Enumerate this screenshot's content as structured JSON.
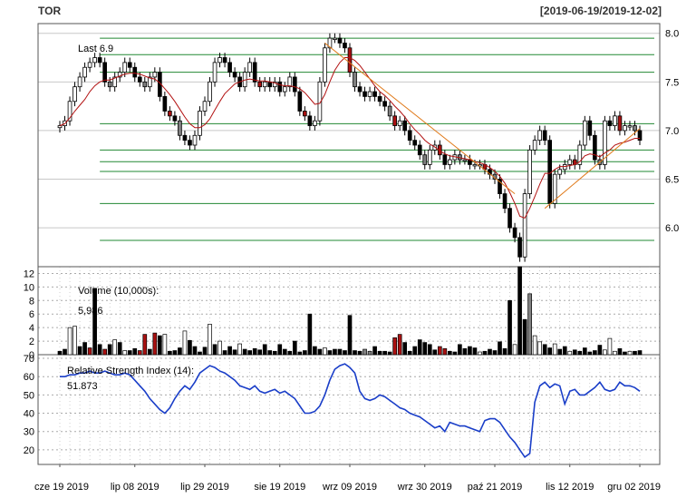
{
  "header": {
    "symbol": "TOR",
    "date_range": "[2019-06-19/2019-12-02]"
  },
  "colors": {
    "up_fill": "#ffffff",
    "down_fill": "#000000",
    "neutral_fill": "#808080",
    "volume_red": "#aa1111",
    "ma_line": "#b21111",
    "trend_line": "#e07a1a",
    "level_line": "#228833",
    "rsi_line": "#1a3ec8"
  },
  "chart_data": [
    {
      "type": "candlestick",
      "name": "price",
      "annotation": "Last 6.9",
      "ylim": [
        5.6,
        8.1
      ],
      "yticks": [
        "6.0",
        "6.5",
        "7.0",
        "7.5",
        "8.0"
      ],
      "x_labels": [
        "cze 19 2019",
        "lip 08 2019",
        "lip 29 2019",
        "sie 19 2019",
        "wrz 09 2019",
        "wrz 30 2019",
        "paź 21 2019",
        "lis 12 2019",
        "gru 02 2019"
      ],
      "close_series": [
        7.05,
        7.1,
        7.3,
        7.45,
        7.55,
        7.65,
        7.7,
        7.75,
        7.7,
        7.5,
        7.45,
        7.55,
        7.6,
        7.7,
        7.65,
        7.55,
        7.5,
        7.45,
        7.55,
        7.6,
        7.35,
        7.2,
        7.15,
        7.1,
        6.95,
        6.9,
        6.85,
        6.95,
        7.2,
        7.3,
        7.5,
        7.7,
        7.75,
        7.7,
        7.6,
        7.55,
        7.45,
        7.6,
        7.7,
        7.5,
        7.45,
        7.5,
        7.45,
        7.5,
        7.4,
        7.45,
        7.55,
        7.4,
        7.2,
        7.15,
        7.05,
        7.1,
        7.5,
        7.85,
        7.95,
        7.95,
        7.9,
        7.85,
        7.6,
        7.45,
        7.4,
        7.35,
        7.4,
        7.35,
        7.3,
        7.25,
        7.15,
        7.05,
        7.1,
        7.0,
        6.9,
        6.85,
        6.75,
        6.65,
        6.8,
        6.85,
        6.75,
        6.65,
        6.7,
        6.75,
        6.7,
        6.7,
        6.65,
        6.65,
        6.65,
        6.6,
        6.55,
        6.5,
        6.35,
        6.2,
        6.0,
        5.9,
        5.7,
        6.35,
        6.8,
        6.9,
        7.0,
        6.9,
        6.25,
        6.55,
        6.6,
        6.65,
        6.7,
        6.65,
        6.85,
        7.1,
        6.95,
        6.7,
        6.65,
        7.1,
        7.05,
        7.15,
        7.0,
        7.05,
        7.05,
        7.0,
        6.9
      ],
      "moving_average": [
        7.05,
        7.07,
        7.13,
        7.2,
        7.26,
        7.32,
        7.4,
        7.46,
        7.5,
        7.52,
        7.52,
        7.54,
        7.56,
        7.58,
        7.59,
        7.59,
        7.58,
        7.56,
        7.54,
        7.53,
        7.49,
        7.43,
        7.37,
        7.3,
        7.22,
        7.14,
        7.07,
        7.03,
        7.03,
        7.06,
        7.12,
        7.21,
        7.3,
        7.38,
        7.43,
        7.48,
        7.5,
        7.52,
        7.53,
        7.52,
        7.51,
        7.51,
        7.5,
        7.49,
        7.47,
        7.46,
        7.46,
        7.45,
        7.43,
        7.39,
        7.33,
        7.27,
        7.28,
        7.37,
        7.5,
        7.62,
        7.7,
        7.75,
        7.75,
        7.72,
        7.67,
        7.6,
        7.53,
        7.46,
        7.4,
        7.36,
        7.31,
        7.25,
        7.2,
        7.14,
        7.07,
        7.01,
        6.96,
        6.9,
        6.86,
        6.83,
        6.79,
        6.76,
        6.74,
        6.73,
        6.72,
        6.71,
        6.7,
        6.68,
        6.67,
        6.65,
        6.62,
        6.58,
        6.53,
        6.46,
        6.36,
        6.25,
        6.12,
        6.1,
        6.2,
        6.32,
        6.45,
        6.56,
        6.56,
        6.6,
        6.63,
        6.63,
        6.64,
        6.65,
        6.68,
        6.74,
        6.76,
        6.75,
        6.73,
        6.77,
        6.8,
        6.85,
        6.87,
        6.88,
        6.9,
        6.92,
        6.92
      ],
      "levels": [
        7.95,
        7.78,
        7.6,
        7.07,
        6.8,
        6.68,
        6.58,
        6.25,
        5.87
      ]
    },
    {
      "type": "bar",
      "name": "volume",
      "label": "Volume (10,000s):",
      "last_value": "5,986",
      "ylim": [
        0,
        13
      ],
      "yticks": [
        "0",
        "2",
        "4",
        "6",
        "8",
        "10",
        "12"
      ],
      "values": [
        0.5,
        0.8,
        4.0,
        4.2,
        1.2,
        1.8,
        1.0,
        9.8,
        1.5,
        0.8,
        1.5,
        2.2,
        1.8,
        0.6,
        0.6,
        0.9,
        0.6,
        3.0,
        0.8,
        3.2,
        2.8,
        3.0,
        0.5,
        0.6,
        1.0,
        3.5,
        2.1,
        1.2,
        0.4,
        1.1,
        4.5,
        1.5,
        2.0,
        0.6,
        1.2,
        0.7,
        1.6,
        0.8,
        0.6,
        0.9,
        0.7,
        1.5,
        0.6,
        0.5,
        1.5,
        0.8,
        0.5,
        2.0,
        0.4,
        0.6,
        6.0,
        1.2,
        0.8,
        1.0,
        0.6,
        0.8,
        0.8,
        0.6,
        5.8,
        0.6,
        0.5,
        0.8,
        0.5,
        1.2,
        0.5,
        0.5,
        0.4,
        2.5,
        3.0,
        1.8,
        0.5,
        1.2,
        2.2,
        1.8,
        1.5,
        0.7,
        1.2,
        0.9,
        0.5,
        0.4,
        1.5,
        0.9,
        1.2,
        1.0,
        0.4,
        0.5,
        0.8,
        0.6,
        1.9,
        0.9,
        8.0,
        1.5,
        13.0,
        5.2,
        9.0,
        2.8,
        1.9,
        1.5,
        1.0,
        1.6,
        0.8,
        1.2,
        0.5,
        0.7,
        0.5,
        1.0,
        0.4,
        0.6,
        1.4,
        0.7,
        2.4,
        0.5,
        0.9,
        0.4,
        0.5,
        0.5,
        0.6
      ],
      "colors": [
        "k",
        "k",
        "w",
        "w",
        "k",
        "k",
        "r",
        "k",
        "k",
        "r",
        "k",
        "w",
        "k",
        "w",
        "k",
        "k",
        "r",
        "r",
        "k",
        "r",
        "k",
        "w",
        "k",
        "k",
        "k",
        "w",
        "k",
        "k",
        "k",
        "k",
        "w",
        "k",
        "w",
        "k",
        "k",
        "k",
        "w",
        "k",
        "k",
        "k",
        "k",
        "k",
        "k",
        "k",
        "k",
        "k",
        "k",
        "k",
        "k",
        "k",
        "k",
        "k",
        "k",
        "w",
        "k",
        "k",
        "k",
        "k",
        "k",
        "k",
        "k",
        "g",
        "g",
        "k",
        "k",
        "k",
        "k",
        "r",
        "r",
        "k",
        "k",
        "k",
        "k",
        "k",
        "k",
        "k",
        "r",
        "r",
        "k",
        "k",
        "k",
        "k",
        "k",
        "k",
        "w",
        "k",
        "k",
        "k",
        "k",
        "k",
        "k",
        "w",
        "k",
        "k",
        "g",
        "w",
        "w",
        "k",
        "k",
        "w",
        "k",
        "k",
        "w",
        "k",
        "k",
        "k",
        "k",
        "k",
        "k",
        "w",
        "w",
        "w",
        "k",
        "k",
        "w",
        "k",
        "k",
        "k",
        "w",
        "k",
        "k"
      ]
    },
    {
      "type": "line",
      "name": "rsi",
      "label": "Relative Strength Index (14):",
      "last_value": "51.873",
      "ylim": [
        12,
        72
      ],
      "yticks": [
        "20",
        "30",
        "40",
        "50",
        "60",
        "70"
      ],
      "values": [
        60,
        60,
        61,
        61,
        62,
        62,
        63,
        62,
        62,
        63,
        62,
        61,
        61,
        62,
        61,
        58,
        55,
        52,
        48,
        45,
        42,
        40,
        43,
        48,
        52,
        55,
        53,
        57,
        62,
        64,
        66,
        65,
        63,
        62,
        60,
        58,
        55,
        54,
        53,
        55,
        52,
        51,
        52,
        53,
        51,
        52,
        50,
        48,
        44,
        40,
        40,
        41,
        44,
        50,
        58,
        64,
        66,
        67,
        65,
        62,
        52,
        48,
        47,
        48,
        50,
        49,
        47,
        45,
        43,
        42,
        40,
        39,
        38,
        36,
        34,
        32,
        33,
        30,
        35,
        34,
        33,
        33,
        32,
        31,
        30,
        36,
        37,
        37,
        35,
        31,
        27,
        24,
        20,
        16,
        18,
        46,
        55,
        57,
        54,
        56,
        55,
        45,
        52,
        53,
        50,
        50,
        52,
        54,
        57,
        53,
        52,
        53,
        57,
        55,
        55,
        54,
        52
      ]
    }
  ]
}
